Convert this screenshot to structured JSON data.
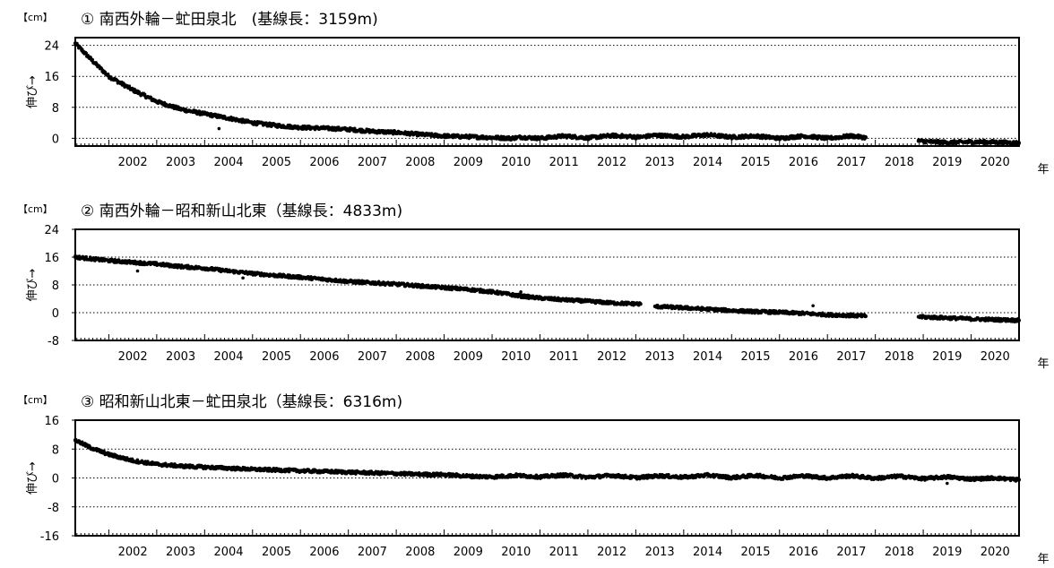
{
  "chart_data": [
    {
      "type": "scatter",
      "title": "① 南西外輪－虻田泉北　(基線長：3159m)",
      "unit_label": "【cm】",
      "ylabel": "伸び→",
      "xlabel": "年",
      "ylim": [
        -2,
        26
      ],
      "yticks": [
        0,
        8,
        16,
        24
      ],
      "xlim": [
        2001.3,
        2021.0
      ],
      "xticks": [
        2002,
        2003,
        2004,
        2005,
        2006,
        2007,
        2008,
        2009,
        2010,
        2011,
        2012,
        2013,
        2014,
        2015,
        2016,
        2017,
        2018,
        2019,
        2020
      ],
      "grid": "dotted horizontal lines at labeled y ticks",
      "gaps": [
        [
          2017.8,
          2018.9
        ]
      ],
      "series": [
        {
          "x": [
            2001.3,
            2001.5,
            2001.7,
            2002.0,
            2002.5,
            2003.0,
            2003.5,
            2004.0,
            2004.5,
            2005.0,
            2005.5,
            2006.0,
            2006.5,
            2007.0,
            2007.5,
            2008.0,
            2008.5,
            2009.0,
            2009.5,
            2010.0,
            2010.4,
            2010.6,
            2011.0,
            2011.5,
            2012.0,
            2012.5,
            2013.1,
            2013.4,
            2014.0,
            2014.5,
            2015.0,
            2015.5,
            2016.0,
            2016.5,
            2017.0,
            2017.5,
            2017.8,
            2018.9,
            2019.5,
            2020.0,
            2020.5,
            2021.0
          ],
          "y": [
            24.5,
            22.0,
            19.5,
            16.0,
            12.5,
            9.5,
            7.5,
            6.3,
            5.2,
            4.0,
            3.3,
            2.8,
            2.6,
            2.3,
            1.8,
            1.5,
            1.0,
            0.6,
            0.4,
            0.2,
            0.0,
            0.3,
            0.0,
            0.6,
            0.1,
            0.7,
            0.3,
            0.8,
            0.4,
            0.9,
            0.3,
            0.6,
            0.0,
            0.6,
            0.0,
            0.6,
            0.2,
            -0.7,
            -1.1,
            -0.9,
            -1.0,
            -1.2
          ]
        }
      ],
      "outliers": [
        {
          "x": 2004.3,
          "y": 2.5
        }
      ]
    },
    {
      "type": "scatter",
      "title": "② 南西外輪－昭和新山北東（基線長：4833m)",
      "unit_label": "【cm】",
      "ylabel": "伸び→",
      "xlabel": "年",
      "ylim": [
        -8,
        24
      ],
      "yticks": [
        -8,
        0,
        8,
        16,
        24
      ],
      "xlim": [
        2001.3,
        2021.0
      ],
      "xticks": [
        2002,
        2003,
        2004,
        2005,
        2006,
        2007,
        2008,
        2009,
        2010,
        2011,
        2012,
        2013,
        2014,
        2015,
        2016,
        2017,
        2018,
        2019,
        2020
      ],
      "grid": "dotted horizontal lines at labeled y ticks",
      "gaps": [
        [
          2013.1,
          2013.4
        ],
        [
          2017.8,
          2018.9
        ]
      ],
      "series": [
        {
          "x": [
            2001.3,
            2002.0,
            2002.5,
            2003.0,
            2003.5,
            2004.0,
            2004.5,
            2005.0,
            2005.5,
            2006.0,
            2006.5,
            2007.0,
            2007.5,
            2008.0,
            2008.5,
            2009.0,
            2009.5,
            2010.0,
            2010.6,
            2011.0,
            2011.5,
            2012.0,
            2012.5,
            2013.1,
            2013.4,
            2014.0,
            2014.5,
            2015.0,
            2015.5,
            2016.0,
            2016.5,
            2017.0,
            2017.5,
            2017.8,
            2018.9,
            2019.5,
            2020.0,
            2020.5,
            2021.0
          ],
          "y": [
            16.0,
            15.0,
            14.5,
            14.0,
            13.3,
            12.8,
            12.0,
            11.3,
            10.7,
            10.2,
            9.6,
            9.0,
            8.6,
            8.2,
            7.7,
            7.2,
            6.7,
            6.0,
            4.8,
            4.2,
            3.7,
            3.3,
            2.8,
            2.5,
            1.8,
            1.4,
            1.0,
            0.6,
            0.3,
            0.1,
            -0.2,
            -0.6,
            -0.8,
            -1.0,
            -1.2,
            -1.5,
            -1.8,
            -2.0,
            -2.2
          ]
        }
      ],
      "outliers": [
        {
          "x": 2002.6,
          "y": 12.0
        },
        {
          "x": 2004.8,
          "y": 10.0
        },
        {
          "x": 2010.6,
          "y": 6.0
        },
        {
          "x": 2016.7,
          "y": 2.0
        }
      ]
    },
    {
      "type": "scatter",
      "title": "③ 昭和新山北東－虻田泉北（基線長：6316m)",
      "unit_label": "【cm】",
      "ylabel": "伸び→",
      "xlabel": "年",
      "ylim": [
        -16,
        16
      ],
      "yticks": [
        -16,
        -8,
        0,
        8,
        16
      ],
      "xlim": [
        2001.3,
        2021.0
      ],
      "xticks": [
        2002,
        2003,
        2004,
        2005,
        2006,
        2007,
        2008,
        2009,
        2010,
        2011,
        2012,
        2013,
        2014,
        2015,
        2016,
        2017,
        2018,
        2019,
        2020
      ],
      "grid": "dotted horizontal lines at labeled y ticks",
      "gaps": [],
      "series": [
        {
          "x": [
            2001.3,
            2001.6,
            2002.0,
            2002.5,
            2003.0,
            2003.5,
            2004.0,
            2004.5,
            2005.0,
            2005.5,
            2006.0,
            2006.5,
            2007.0,
            2007.5,
            2008.0,
            2008.5,
            2009.0,
            2009.5,
            2010.0,
            2010.5,
            2011.0,
            2011.5,
            2012.0,
            2012.5,
            2013.0,
            2013.5,
            2014.0,
            2014.5,
            2015.0,
            2015.5,
            2016.0,
            2016.5,
            2017.0,
            2017.5,
            2018.0,
            2018.5,
            2019.0,
            2019.5,
            2020.0,
            2020.5,
            2021.0
          ],
          "y": [
            10.5,
            8.5,
            6.5,
            4.8,
            3.8,
            3.3,
            3.0,
            2.7,
            2.4,
            2.2,
            2.0,
            1.8,
            1.6,
            1.4,
            1.2,
            1.0,
            0.9,
            0.5,
            0.3,
            0.7,
            0.3,
            0.8,
            0.2,
            0.7,
            0.1,
            0.6,
            0.2,
            0.8,
            0.1,
            0.7,
            0.0,
            0.6,
            0.0,
            0.6,
            -0.1,
            0.5,
            -0.2,
            0.3,
            -0.3,
            0.0,
            -0.5
          ]
        }
      ],
      "outliers": [
        {
          "x": 2019.5,
          "y": -1.5
        }
      ]
    }
  ]
}
